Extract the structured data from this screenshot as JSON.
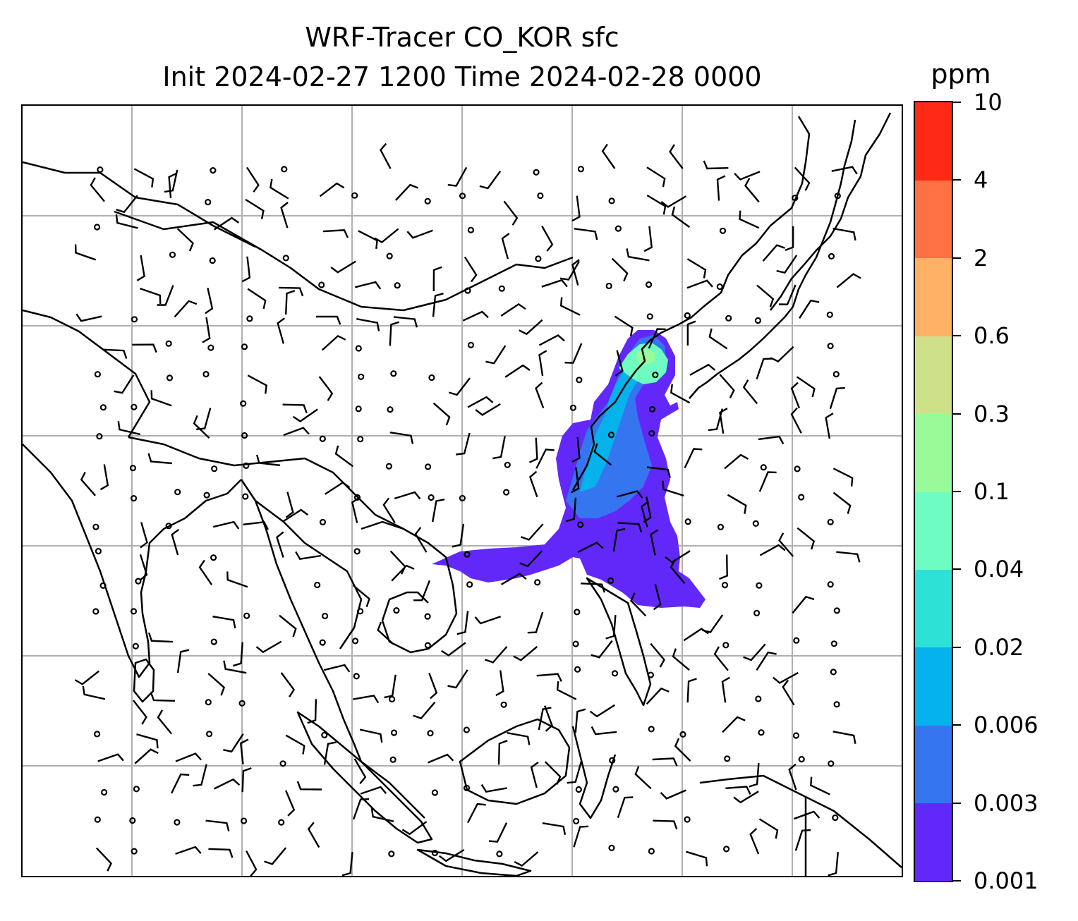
{
  "title": {
    "line1": "WRF-Tracer CO_KOR sfc",
    "line2": "Init 2024-02-27 1200 Time 2024-02-28 0000"
  },
  "colorbar": {
    "unit_label": "ppm",
    "levels": [
      "0.001",
      "0.003",
      "0.006",
      "0.02",
      "0.04",
      "0.1",
      "0.3",
      "0.6",
      "2",
      "4",
      "10"
    ],
    "colors": [
      "#6228fa",
      "#3575f0",
      "#05b2ec",
      "#2ee1d6",
      "#6efcc3",
      "#98fa98",
      "#cfe188",
      "#ffb266",
      "#ff7142",
      "#ff2a16"
    ]
  },
  "map": {
    "gridline_color": "#b0b0b0",
    "coastline_color": "#000000",
    "wind_barb_color": "#000000",
    "legend": "none"
  }
}
